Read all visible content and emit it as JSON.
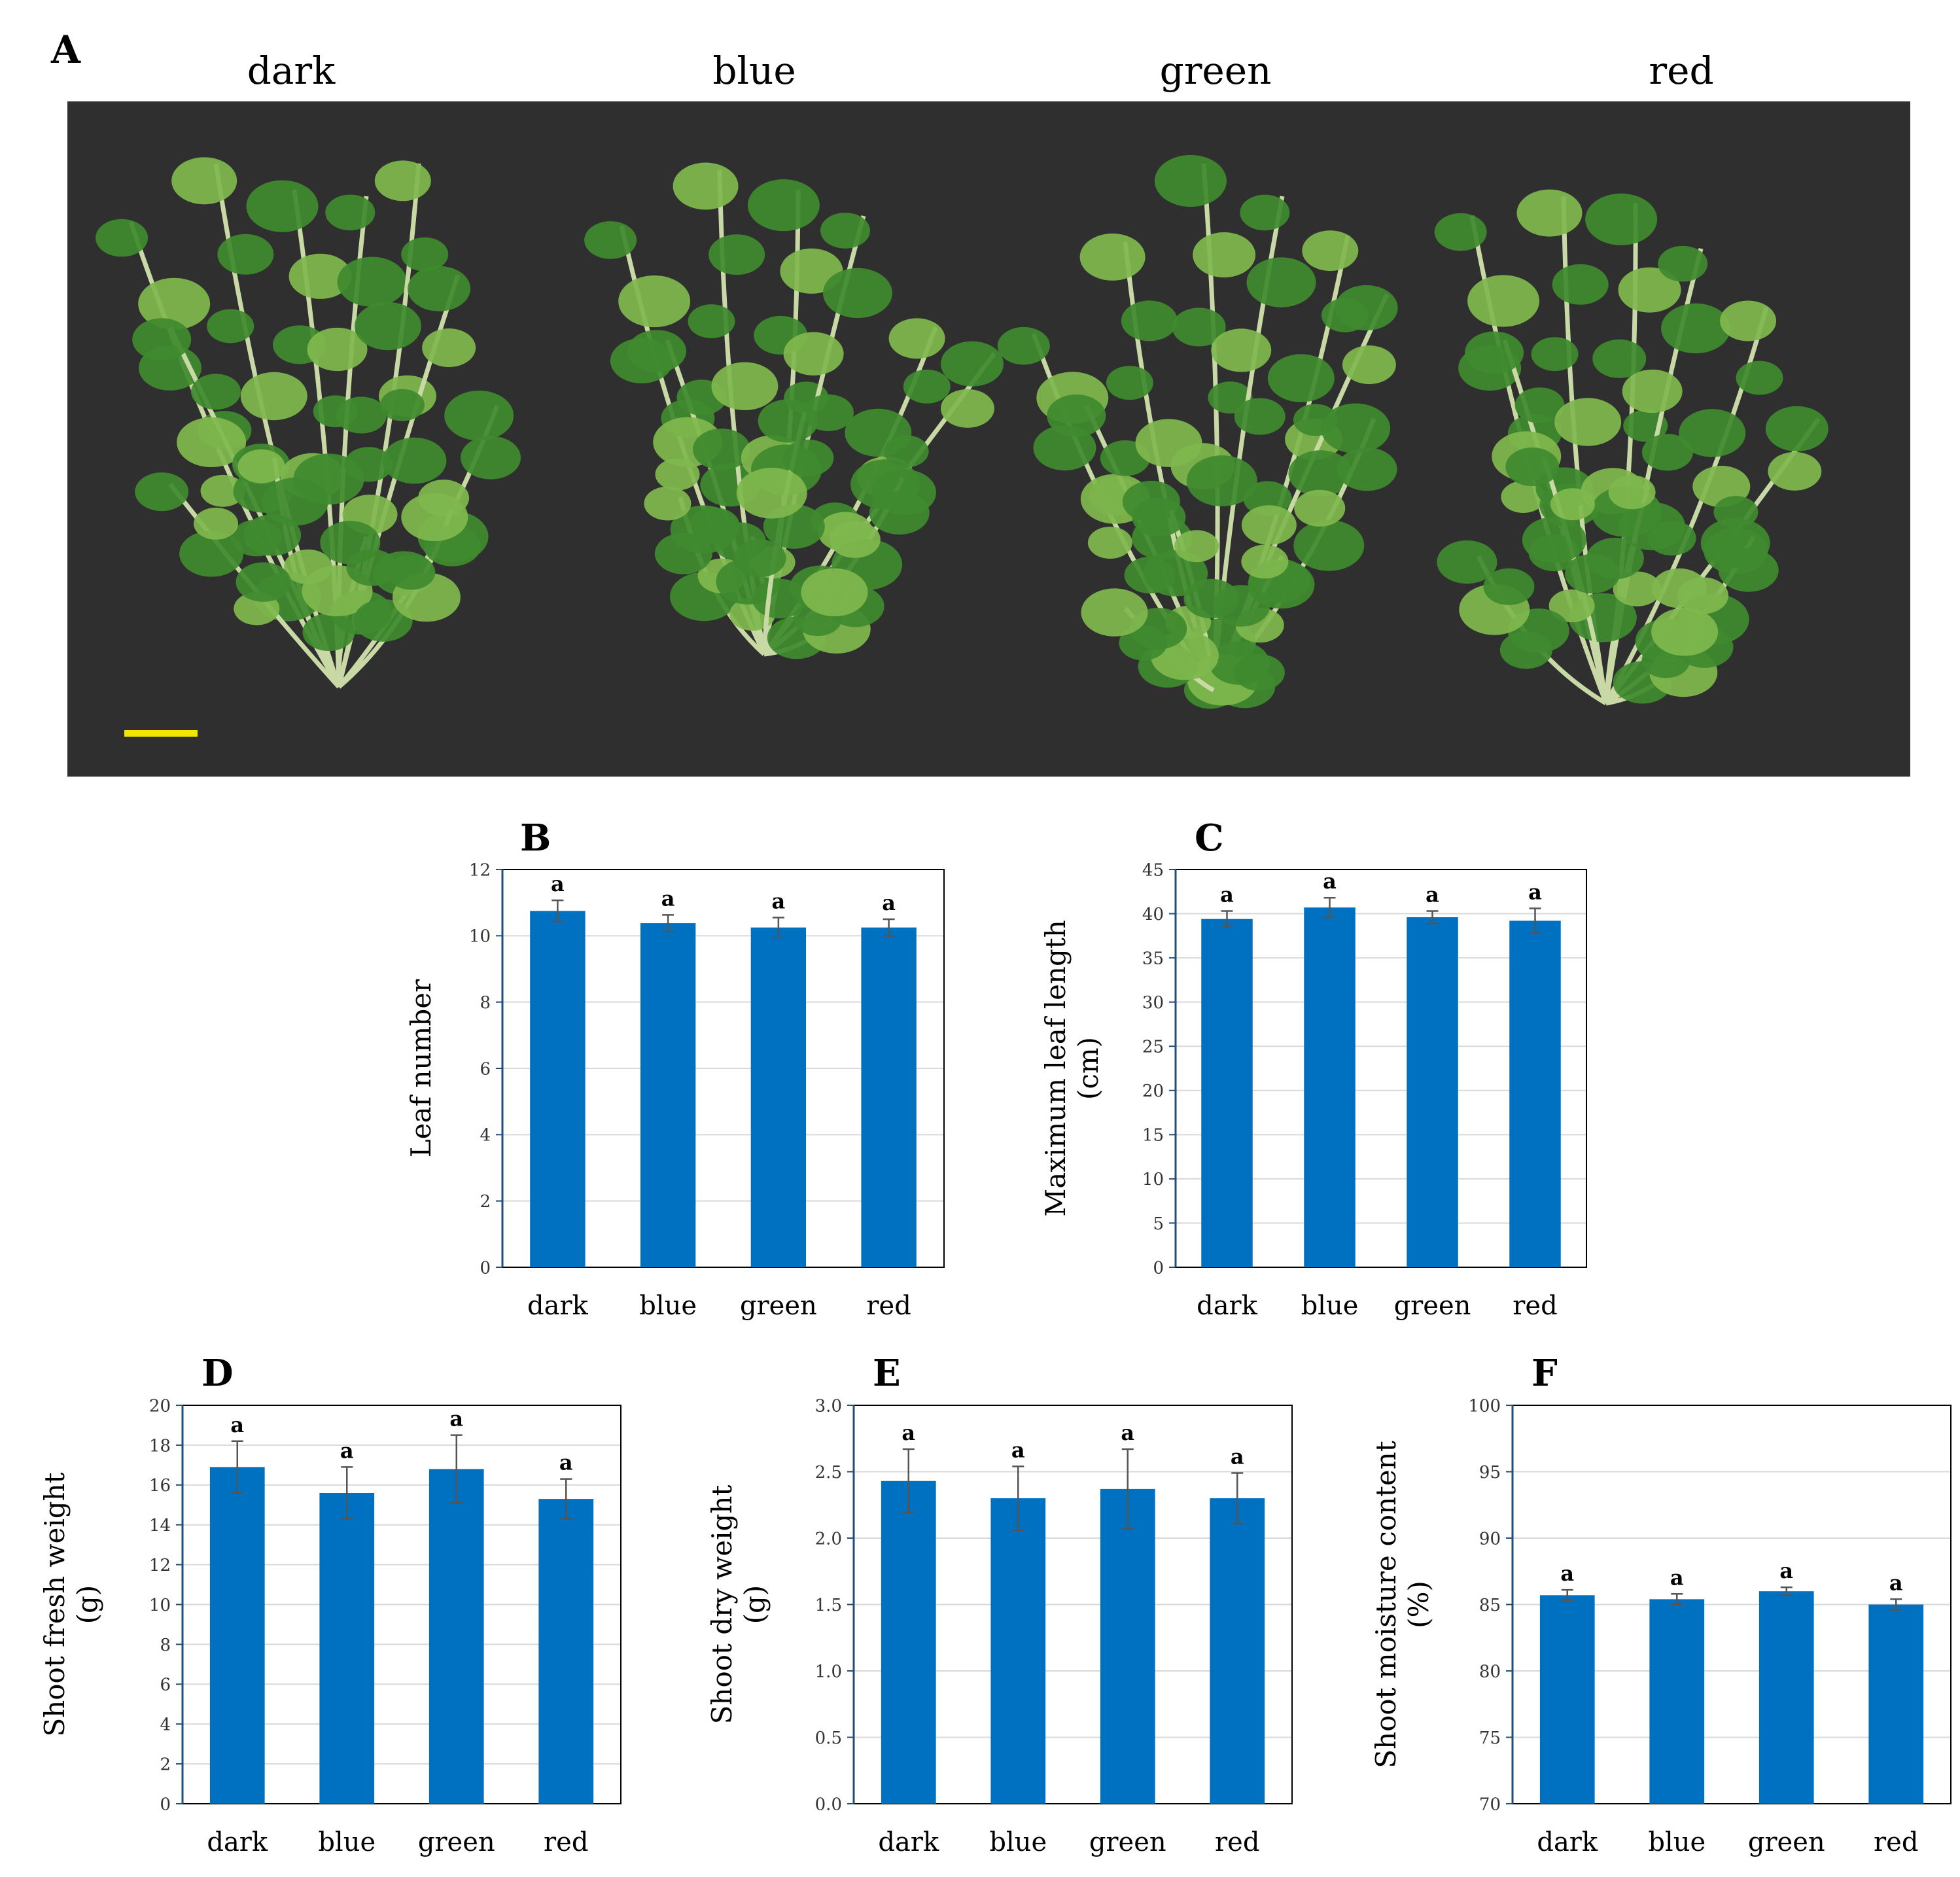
{
  "panel_a": {
    "letter": "A",
    "labels": [
      "dark",
      "blue",
      "green",
      "red"
    ],
    "colors": {
      "background": "#2f2f2f",
      "leaf": "#3f8a2e",
      "leaf_light": "#7fb84e",
      "stem": "#c8d9a6",
      "scale_bar": "#f2e600"
    }
  },
  "chart_data": [
    {
      "panel": "B",
      "type": "bar",
      "categories": [
        "dark",
        "blue",
        "green",
        "red"
      ],
      "values": [
        10.75,
        10.38,
        10.25,
        10.25
      ],
      "errors": [
        0.32,
        0.25,
        0.3,
        0.25
      ],
      "letters": [
        "a",
        "a",
        "a",
        "a"
      ],
      "ylabel": [
        "Leaf number"
      ],
      "ylim": [
        0,
        12
      ],
      "yticks": [
        0,
        2,
        4,
        6,
        8,
        10,
        12
      ],
      "ytick_labels": [
        "0",
        "2",
        "4",
        "6",
        "8",
        "10",
        "12"
      ],
      "grid": true,
      "bar_color": "#0070c0"
    },
    {
      "panel": "C",
      "type": "bar",
      "categories": [
        "dark",
        "blue",
        "green",
        "red"
      ],
      "values": [
        39.4,
        40.7,
        39.6,
        39.2
      ],
      "errors": [
        0.9,
        1.1,
        0.7,
        1.4
      ],
      "letters": [
        "a",
        "a",
        "a",
        "a"
      ],
      "ylabel": [
        "Maximum leaf length",
        "(cm)"
      ],
      "ylim": [
        0,
        45
      ],
      "yticks": [
        0,
        5,
        10,
        15,
        20,
        25,
        30,
        35,
        40,
        45
      ],
      "ytick_labels": [
        "0",
        "5",
        "10",
        "15",
        "20",
        "25",
        "30",
        "35",
        "40",
        "45"
      ],
      "grid": true,
      "bar_color": "#0070c0"
    },
    {
      "panel": "D",
      "type": "bar",
      "categories": [
        "dark",
        "blue",
        "green",
        "red"
      ],
      "values": [
        16.9,
        15.6,
        16.8,
        15.3
      ],
      "errors": [
        1.3,
        1.3,
        1.7,
        1.0
      ],
      "letters": [
        "a",
        "a",
        "a",
        "a"
      ],
      "ylabel": [
        "Shoot fresh weight",
        "(g)"
      ],
      "ylim": [
        0,
        20
      ],
      "yticks": [
        0,
        2,
        4,
        6,
        8,
        10,
        12,
        14,
        16,
        18,
        20
      ],
      "ytick_labels": [
        "0",
        "2",
        "4",
        "6",
        "8",
        "10",
        "12",
        "14",
        "16",
        "18",
        "20"
      ],
      "grid": true,
      "bar_color": "#0070c0"
    },
    {
      "panel": "E",
      "type": "bar",
      "categories": [
        "dark",
        "blue",
        "green",
        "red"
      ],
      "values": [
        2.43,
        2.3,
        2.37,
        2.3
      ],
      "errors": [
        0.24,
        0.24,
        0.3,
        0.19
      ],
      "letters": [
        "a",
        "a",
        "a",
        "a"
      ],
      "ylabel": [
        "Shoot dry weight",
        "(g)"
      ],
      "ylim": [
        0,
        3
      ],
      "yticks": [
        0,
        0.5,
        1,
        1.5,
        2,
        2.5,
        3
      ],
      "ytick_labels": [
        "0.0",
        "0.5",
        "1.0",
        "1.5",
        "2.0",
        "2.5",
        "3.0"
      ],
      "grid": true,
      "bar_color": "#0070c0"
    },
    {
      "panel": "F",
      "type": "bar",
      "categories": [
        "dark",
        "blue",
        "green",
        "red"
      ],
      "values": [
        85.7,
        85.4,
        86.0,
        85.0
      ],
      "errors": [
        0.4,
        0.4,
        0.3,
        0.4
      ],
      "letters": [
        "a",
        "a",
        "a",
        "a"
      ],
      "ylabel": [
        "Shoot moisture content",
        "(%)"
      ],
      "ylim": [
        70,
        100
      ],
      "yticks": [
        70,
        75,
        80,
        85,
        90,
        95,
        100
      ],
      "ytick_labels": [
        "70",
        "75",
        "80",
        "85",
        "90",
        "95",
        "100"
      ],
      "grid": true,
      "bar_color": "#0070c0"
    }
  ]
}
